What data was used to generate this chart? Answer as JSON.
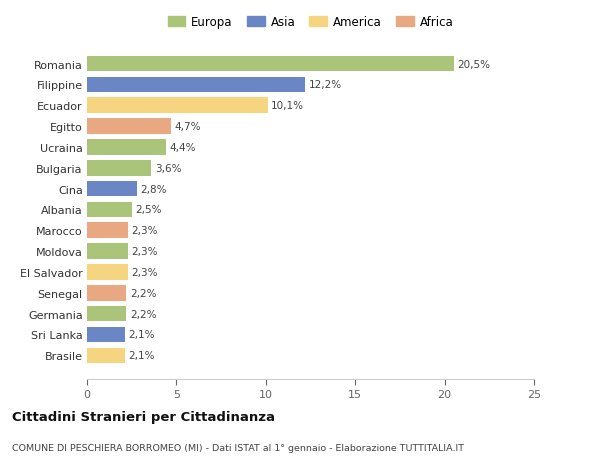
{
  "categories": [
    "Brasile",
    "Sri Lanka",
    "Germania",
    "Senegal",
    "El Salvador",
    "Moldova",
    "Marocco",
    "Albania",
    "Cina",
    "Bulgaria",
    "Ucraina",
    "Egitto",
    "Ecuador",
    "Filippine",
    "Romania"
  ],
  "values": [
    2.1,
    2.1,
    2.2,
    2.2,
    2.3,
    2.3,
    2.3,
    2.5,
    2.8,
    3.6,
    4.4,
    4.7,
    10.1,
    12.2,
    20.5
  ],
  "labels": [
    "2,1%",
    "2,1%",
    "2,2%",
    "2,2%",
    "2,3%",
    "2,3%",
    "2,3%",
    "2,5%",
    "2,8%",
    "3,6%",
    "4,4%",
    "4,7%",
    "10,1%",
    "12,2%",
    "20,5%"
  ],
  "colors": [
    "#f5d580",
    "#6b86c4",
    "#aac47a",
    "#e8a882",
    "#f5d580",
    "#aac47a",
    "#e8a882",
    "#aac47a",
    "#6b86c4",
    "#aac47a",
    "#aac47a",
    "#e8a882",
    "#f5d580",
    "#6b86c4",
    "#aac47a"
  ],
  "legend_labels": [
    "Europa",
    "Asia",
    "America",
    "Africa"
  ],
  "legend_colors": [
    "#aac47a",
    "#6b86c4",
    "#f5d580",
    "#e8a882"
  ],
  "xlim": [
    0,
    25
  ],
  "xticks": [
    0,
    5,
    10,
    15,
    20,
    25
  ],
  "title": "Cittadini Stranieri per Cittadinanza",
  "subtitle": "COMUNE DI PESCHIERA BORROMEO (MI) - Dati ISTAT al 1° gennaio - Elaborazione TUTTITALIA.IT",
  "background_color": "#ffffff",
  "bar_alpha": 1.0
}
